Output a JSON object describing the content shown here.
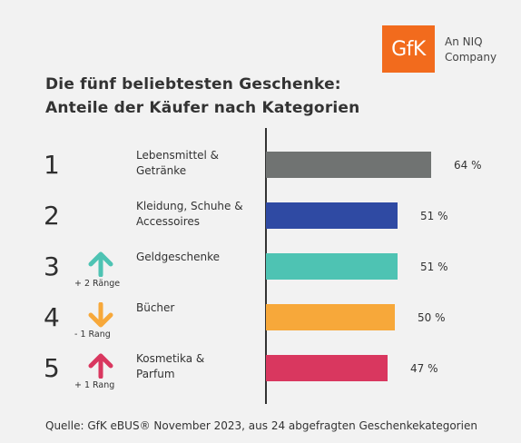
{
  "logo": {
    "text": "GfK",
    "tagline_line1": "An NIQ",
    "tagline_line2": "Company",
    "color": "#f26b1d"
  },
  "header": {
    "title_line1": "Die fünf beliebtesten Geschenke:",
    "title_line2": "Anteile der Käufer nach Kategorien"
  },
  "chart_data": {
    "type": "bar",
    "orientation": "horizontal",
    "categories": [
      "Lebensmittel & Getränke",
      "Kleidung, Schuhe & Accessoires",
      "Geldgeschenke",
      "Bücher",
      "Kosmetika & Parfum"
    ],
    "values": [
      64,
      51,
      51,
      50,
      47
    ],
    "unit": "%",
    "xlim": [
      0,
      100
    ],
    "grid": false,
    "legend": "none",
    "rows": [
      {
        "rank": "1",
        "label_lines": [
          "Lebensmittel &",
          "Getränke"
        ],
        "value": 64,
        "value_label": "64 %",
        "color": "#707372",
        "change": "",
        "arrow": "none",
        "arrow_color": ""
      },
      {
        "rank": "2",
        "label_lines": [
          "Kleidung, Schuhe &",
          "Accessoires"
        ],
        "value": 51,
        "value_label": "51 %",
        "color": "#2f4aa3",
        "change": "",
        "arrow": "none",
        "arrow_color": ""
      },
      {
        "rank": "3",
        "label_lines": [
          "Geldgeschenke"
        ],
        "value": 51,
        "value_label": "51 %",
        "color": "#4ec3b3",
        "change": "+ 2 Ränge",
        "arrow": "up",
        "arrow_color": "#4ec3b3"
      },
      {
        "rank": "4",
        "label_lines": [
          "Bücher"
        ],
        "value": 50,
        "value_label": "50 %",
        "color": "#f7a83a",
        "change": "- 1 Rang",
        "arrow": "down",
        "arrow_color": "#f7a83a"
      },
      {
        "rank": "5",
        "label_lines": [
          "Kosmetika &",
          "Parfum"
        ],
        "value": 47,
        "value_label": "47 %",
        "color": "#d9375f",
        "change": "+ 1 Rang",
        "arrow": "up",
        "arrow_color": "#d9375f"
      }
    ]
  },
  "footer": {
    "source": "Quelle: GfK eBUS® November 2023, aus 24 abgefragten Geschenkekategorien"
  }
}
